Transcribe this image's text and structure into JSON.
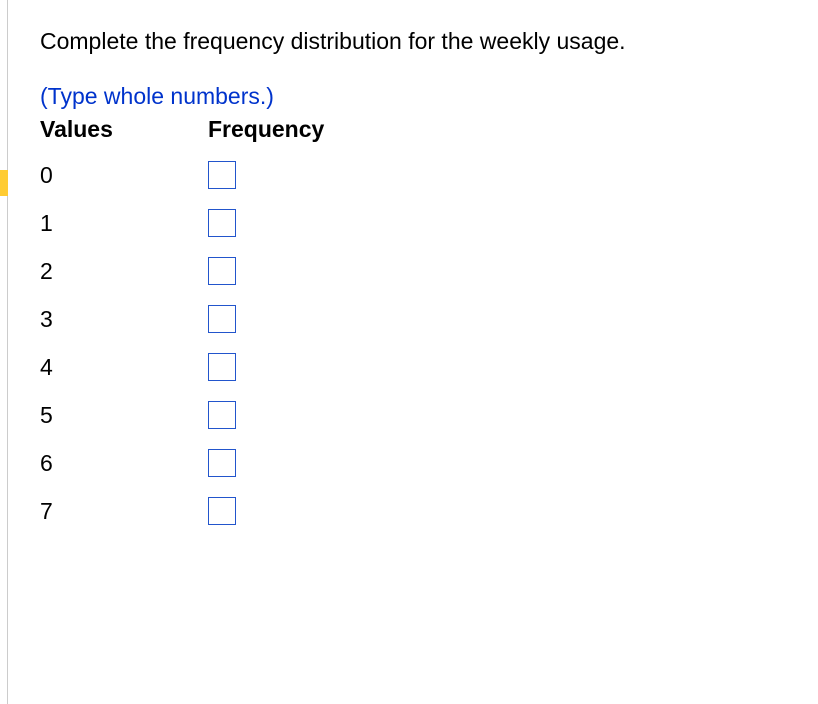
{
  "prompt_text": "Complete the frequency distribution for the weekly usage.",
  "hint_text": "(Type whole numbers.)",
  "headers": {
    "values": "Values",
    "frequency": "Frequency"
  },
  "rows": [
    {
      "value": "0",
      "frequency": ""
    },
    {
      "value": "1",
      "frequency": ""
    },
    {
      "value": "2",
      "frequency": ""
    },
    {
      "value": "3",
      "frequency": ""
    },
    {
      "value": "4",
      "frequency": ""
    },
    {
      "value": "5",
      "frequency": ""
    },
    {
      "value": "6",
      "frequency": ""
    },
    {
      "value": "7",
      "frequency": ""
    }
  ],
  "colors": {
    "hint_color": "#0033cc",
    "input_border": "#2255cc",
    "left_rule": "#cccccc",
    "marker": "#ffcc33",
    "text": "#000000",
    "background": "#ffffff"
  }
}
